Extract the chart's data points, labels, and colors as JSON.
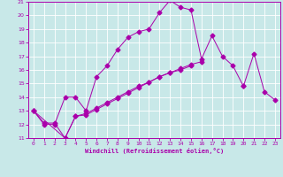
{
  "xlabel": "Windchill (Refroidissement éolien,°C)",
  "xlim": [
    -0.5,
    23.5
  ],
  "ylim": [
    11,
    21
  ],
  "xticks": [
    0,
    1,
    2,
    3,
    4,
    5,
    6,
    7,
    8,
    9,
    10,
    11,
    12,
    13,
    14,
    15,
    16,
    17,
    18,
    19,
    20,
    21,
    22,
    23
  ],
  "yticks": [
    11,
    12,
    13,
    14,
    15,
    16,
    17,
    18,
    19,
    20,
    21
  ],
  "background_color": "#c8e8e8",
  "line_color": "#aa00aa",
  "grid_color": "#ffffff",
  "line1_x": [
    0,
    1,
    2,
    3,
    4,
    5,
    6,
    7,
    8,
    9,
    10,
    11,
    12,
    13,
    14,
    15,
    16,
    17,
    18,
    19,
    20
  ],
  "line1_y": [
    13,
    12,
    12,
    14,
    14,
    13,
    15.5,
    16.3,
    17.5,
    18.4,
    18.8,
    19.0,
    20.2,
    21.1,
    20.6,
    20.4,
    16.8,
    18.5,
    17.0,
    16.3,
    14.8
  ],
  "line2_x": [
    0,
    3,
    4,
    5,
    6,
    7,
    8,
    9,
    10,
    11,
    12,
    13,
    14,
    15,
    16,
    17,
    18,
    19,
    20,
    21,
    22,
    23
  ],
  "line2_y": [
    13,
    11.0,
    12.6,
    12.7,
    13.1,
    13.5,
    13.9,
    14.3,
    14.7,
    15.1,
    15.5,
    15.8,
    16.1,
    16.4,
    16.6,
    null,
    null,
    null,
    14.8,
    17.2,
    14.4,
    13.8
  ],
  "line3_x": [
    0,
    1,
    2,
    3,
    4,
    5,
    6,
    7,
    8,
    9,
    10,
    11,
    12,
    13,
    14,
    15,
    16,
    17,
    18,
    19,
    20,
    21,
    22,
    23
  ],
  "line3_y": [
    13,
    12.1,
    12.1,
    11.0,
    12.6,
    12.8,
    13.2,
    13.6,
    14.0,
    14.4,
    14.8,
    15.1,
    15.5,
    15.8,
    16.0,
    16.3,
    null,
    null,
    null,
    null,
    null,
    null,
    null,
    null
  ]
}
